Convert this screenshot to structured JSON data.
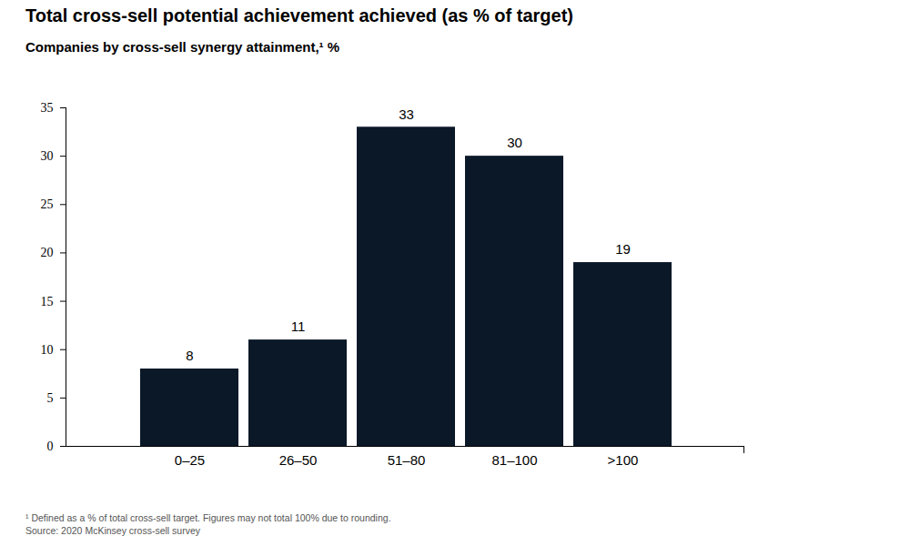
{
  "chart_data": {
    "type": "bar",
    "title": "Total cross-sell potential achievement achieved (as % of target)",
    "subtitle": "Companies by cross-sell synergy attainment,¹ %",
    "footnote": "¹ Defined as a % of total cross-sell target. Figures may not total 100% due to rounding.",
    "source": "Source:  2020 McKinsey cross-sell survey",
    "categories": [
      "0–25",
      "26–50",
      "51–80",
      "81–100",
      ">100"
    ],
    "values": [
      8,
      11,
      33,
      30,
      19
    ],
    "color": "#0b1828",
    "ylim": [
      0,
      35
    ],
    "yticks": [
      0,
      5,
      10,
      15,
      20,
      25,
      30,
      35
    ],
    "data_labels": true
  }
}
